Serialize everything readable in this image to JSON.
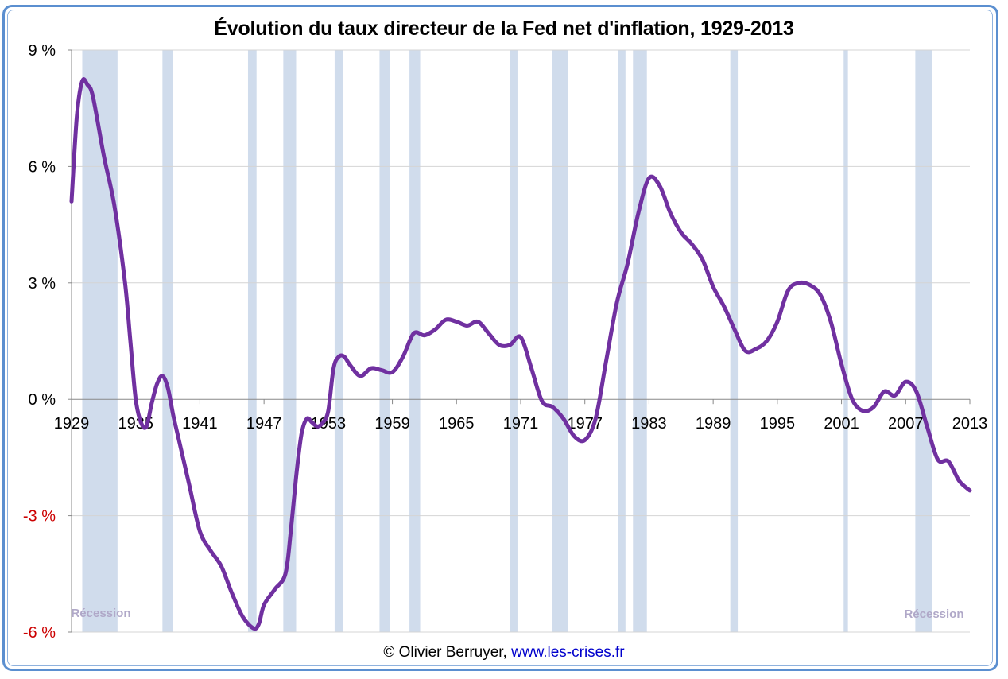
{
  "chart_data": {
    "type": "line",
    "title": "Évolution du taux directeur de la Fed net d'inflation, 1929-2013",
    "xlabel": "",
    "ylabel": "",
    "xlim": [
      1929,
      2013
    ],
    "ylim": [
      -6,
      9
    ],
    "x_ticks": [
      1929,
      1935,
      1941,
      1947,
      1953,
      1959,
      1965,
      1971,
      1977,
      1983,
      1989,
      1995,
      2001,
      2007,
      2013
    ],
    "x_tick_labels": [
      "1929",
      "1935",
      "1941",
      "1947",
      "1953",
      "1959",
      "1965",
      "1971",
      "1977",
      "1983",
      "1989",
      "1995",
      "2001",
      "2007",
      "2013"
    ],
    "y_ticks": [
      -6,
      -3,
      0,
      3,
      6,
      9
    ],
    "y_tick_labels": [
      "-6 %",
      "-3 %",
      "0 %",
      "3 %",
      "6 %",
      "9 %"
    ],
    "negative_tick_color": "#cc0000",
    "grid": true,
    "line_color": "#7030a0",
    "recession_color": "#d0dcec",
    "series": [
      {
        "x": [
          1929,
          1929.5,
          1930,
          1930.5,
          1931,
          1932,
          1933,
          1934,
          1934.5,
          1935,
          1935.5,
          1936,
          1936.5,
          1937,
          1937.5,
          1938,
          1938.5,
          1939,
          1940,
          1941,
          1942,
          1943,
          1944,
          1945,
          1946,
          1946.5,
          1947,
          1948,
          1949,
          1949.5,
          1950,
          1950.5,
          1951,
          1951.5,
          1952,
          1952.5,
          1953,
          1953.5,
          1954,
          1954.5,
          1955,
          1956,
          1957,
          1958,
          1959,
          1960,
          1961,
          1962,
          1963,
          1964,
          1965,
          1966,
          1967,
          1968,
          1969,
          1970,
          1971,
          1972,
          1973,
          1974,
          1975,
          1976,
          1977,
          1978,
          1979,
          1980,
          1981,
          1982,
          1983,
          1984,
          1985,
          1986,
          1987,
          1988,
          1989,
          1990,
          1991,
          1992,
          1993,
          1994,
          1995,
          1996,
          1997,
          1998,
          1999,
          2000,
          2001,
          2002,
          2003,
          2004,
          2005,
          2006,
          2007,
          2008,
          2009,
          2010,
          2011,
          2012,
          2013
        ],
        "values": [
          5.1,
          7.3,
          8.2,
          8.1,
          7.8,
          6.3,
          5.0,
          3.0,
          1.5,
          0.0,
          -0.6,
          -0.7,
          -0.1,
          0.4,
          0.6,
          0.3,
          -0.4,
          -1.0,
          -2.2,
          -3.4,
          -3.9,
          -4.3,
          -5.0,
          -5.6,
          -5.9,
          -5.8,
          -5.3,
          -4.9,
          -4.5,
          -3.4,
          -2.0,
          -0.9,
          -0.5,
          -0.6,
          -0.7,
          -0.6,
          -0.3,
          0.8,
          1.1,
          1.1,
          0.9,
          0.6,
          0.8,
          0.75,
          0.7,
          1.1,
          1.7,
          1.65,
          1.8,
          2.05,
          2.0,
          1.9,
          2.0,
          1.7,
          1.4,
          1.4,
          1.6,
          0.8,
          -0.05,
          -0.2,
          -0.5,
          -0.95,
          -1.05,
          -0.5,
          1.0,
          2.5,
          3.5,
          4.8,
          5.7,
          5.5,
          4.8,
          4.3,
          4.0,
          3.6,
          2.9,
          2.4,
          1.8,
          1.25,
          1.3,
          1.5,
          2.0,
          2.8,
          3.0,
          2.95,
          2.7,
          2.0,
          0.9,
          0.0,
          -0.3,
          -0.2,
          0.2,
          0.1,
          0.45,
          0.2,
          -0.7,
          -1.55,
          -1.6,
          -2.1,
          -2.35
        ]
      }
    ],
    "recessions": [
      [
        1930,
        1933.3
      ],
      [
        1937.5,
        1938.5
      ],
      [
        1945.5,
        1946.3
      ],
      [
        1948.8,
        1950
      ],
      [
        1953.6,
        1954.4
      ],
      [
        1957.8,
        1958.8
      ],
      [
        1960.6,
        1961.6
      ],
      [
        1970,
        1970.7
      ],
      [
        1973.9,
        1975.4
      ],
      [
        1980.1,
        1980.8
      ],
      [
        1981.5,
        1982.8
      ],
      [
        1990.6,
        1991.3
      ],
      [
        2001.2,
        2001.6
      ],
      [
        2007.9,
        2009.5
      ]
    ],
    "annotations": [
      {
        "text": "Récession",
        "color": "#b0a8c8"
      },
      {
        "text": "Récession",
        "color": "#b0a8c8"
      }
    ]
  },
  "credit": {
    "prefix": "© Olivier Berruyer,",
    "link_text": "www.les-crises.fr"
  }
}
